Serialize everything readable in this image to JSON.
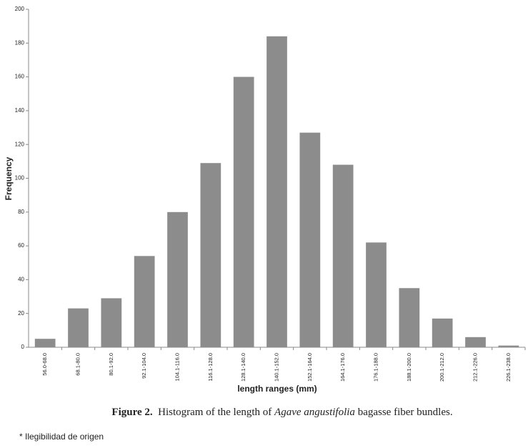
{
  "chart_data": {
    "type": "bar",
    "categories": [
      "56.0-68.0",
      "68.1-80.0",
      "80.1-92.0",
      "92.1-104.0",
      "104.1-116.0",
      "116.1-128.0",
      "128.1-140.0",
      "140.1-152.0",
      "152.1-164.0",
      "164.1-176.0",
      "176.1-188.0",
      "188.1-200.0",
      "200.1-212.0",
      "212.1-226.0",
      "226.1-238.0"
    ],
    "values": [
      5,
      23,
      29,
      54,
      80,
      109,
      160,
      184,
      127,
      108,
      62,
      35,
      17,
      6,
      1
    ],
    "color": "#8c8c8c",
    "ylim": [
      0,
      200
    ],
    "yticks": [
      0,
      20,
      40,
      60,
      80,
      100,
      120,
      140,
      160,
      180,
      200
    ],
    "grid": false,
    "x_label": "length ranges (mm)",
    "y_label": "Frequency"
  },
  "caption": {
    "label": "Figure 2.",
    "text_before": "Histogram of the length of",
    "italic": "Agave angustifolia",
    "text_after": "bagasse fiber bundles."
  },
  "footnote": "* Ilegibilidad de origen"
}
